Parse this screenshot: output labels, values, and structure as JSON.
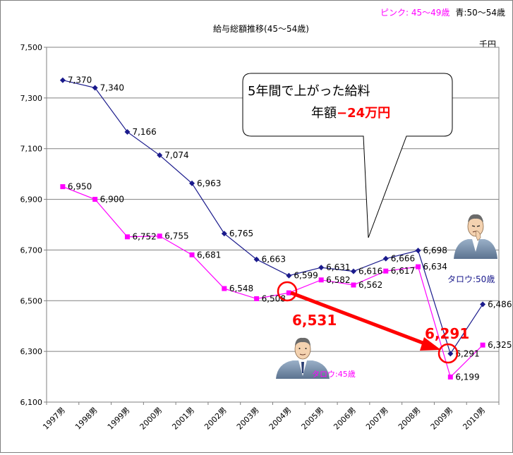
{
  "chart_data": {
    "type": "line",
    "title": "給与総額推移(45～54歳)",
    "legend_note": {
      "pink": "ピンク: 45～49歳",
      "blue": "青:50～54歳"
    },
    "unit_label": "千円",
    "categories": [
      "1997男",
      "1998男",
      "1999男",
      "2000男",
      "2001男",
      "2002男",
      "2003男",
      "2004男",
      "2005男",
      "2006男",
      "2007男",
      "2008男",
      "2009男",
      "2010男"
    ],
    "ylim": [
      6100,
      7500
    ],
    "yticks": [
      6100,
      6300,
      6500,
      6700,
      6900,
      7100,
      7300,
      7500
    ],
    "ytick_labels": [
      "6,100",
      "6,300",
      "6,500",
      "6,700",
      "6,900",
      "7,100",
      "7,300",
      "7,500"
    ],
    "grid": true,
    "series": [
      {
        "name": "青:50～54歳",
        "color": "#1a1a8c",
        "marker": "diamond",
        "values": [
          7370,
          7340,
          7166,
          7074,
          6963,
          6765,
          6663,
          6599,
          6631,
          6616,
          6666,
          6698,
          6291,
          6486
        ],
        "labels": [
          "7,370",
          "7,340",
          "7,166",
          "7,074",
          "6,963",
          "6,765",
          "6,663",
          "6,599",
          "6,631",
          "6,616",
          "6,666",
          "6,698",
          "6,291",
          "6,486"
        ]
      },
      {
        "name": "ピンク: 45～49歳",
        "color": "#ff00ff",
        "marker": "square",
        "values": [
          6950,
          6900,
          6752,
          6755,
          6681,
          6548,
          6508,
          6531,
          6582,
          6562,
          6617,
          6634,
          6199,
          6325
        ],
        "labels": [
          "6,950",
          "6,900",
          "6,752",
          "6,755",
          "6,681",
          "6,548",
          "6,508",
          "",
          "6,582",
          "6,562",
          "6,617",
          "6,634",
          "6,199",
          "6,325"
        ]
      }
    ],
    "callout": {
      "line1": "5年間で上がった給料",
      "line2_prefix": "年額",
      "line2_value": "−24万円"
    },
    "highlight": {
      "from_label": "6,531",
      "to_label": "6,291",
      "color": "#ff0000"
    },
    "person_labels": {
      "age45": "タロウ:45歳",
      "age50": "タロウ:50歳"
    }
  }
}
